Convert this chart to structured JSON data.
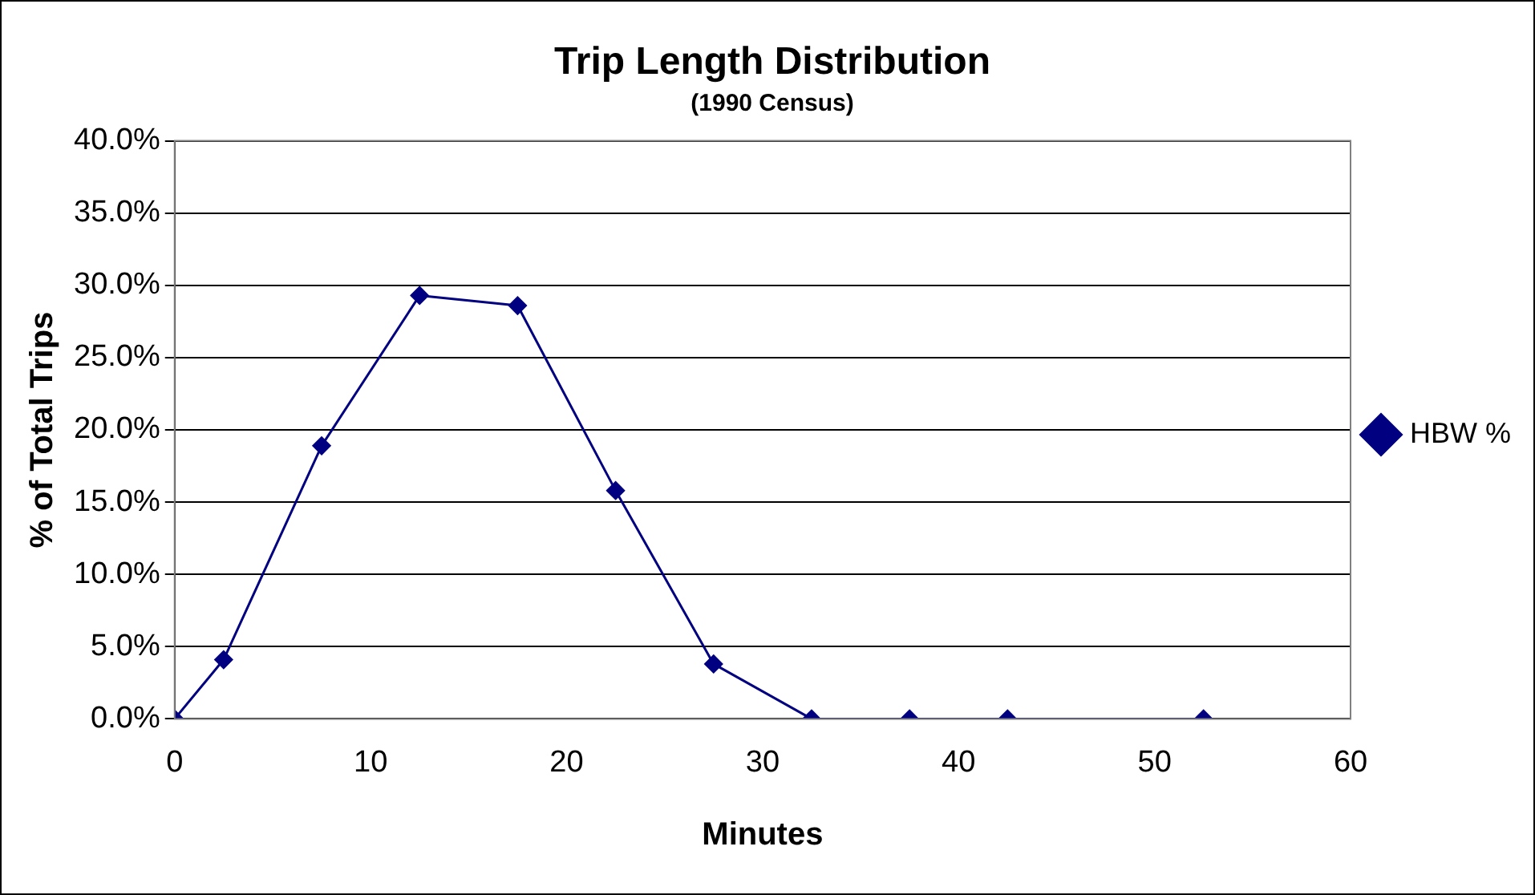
{
  "chart_data": {
    "type": "line",
    "title": "Trip Length Distribution",
    "subtitle": "(1990 Census)",
    "xlabel": "Minutes",
    "ylabel": "% of Total Trips",
    "x": [
      0,
      2.5,
      7.5,
      12.5,
      17.5,
      22.5,
      27.5,
      32.5,
      37.5,
      42.5,
      52.5
    ],
    "series": [
      {
        "name": "HBW %",
        "color": "#000080",
        "values": [
          0,
          4.1,
          18.9,
          29.3,
          28.6,
          15.8,
          3.8,
          0,
          0,
          0,
          0
        ]
      }
    ],
    "xlim": [
      0,
      60
    ],
    "xticks": [
      0,
      10,
      20,
      30,
      40,
      50,
      60
    ],
    "ylim": [
      0,
      40
    ],
    "yticks": [
      {
        "value": 0,
        "label": "0.0%"
      },
      {
        "value": 5,
        "label": "5.0%"
      },
      {
        "value": 10,
        "label": "10.0%"
      },
      {
        "value": 15,
        "label": "15.0%"
      },
      {
        "value": 20,
        "label": "20.0%"
      },
      {
        "value": 25,
        "label": "25.0%"
      },
      {
        "value": 30,
        "label": "30.0%"
      },
      {
        "value": 35,
        "label": "35.0%"
      },
      {
        "value": 40,
        "label": "40.0%"
      }
    ],
    "grid": "y",
    "legend": "right",
    "marker": "diamond",
    "line_style": "solid"
  }
}
